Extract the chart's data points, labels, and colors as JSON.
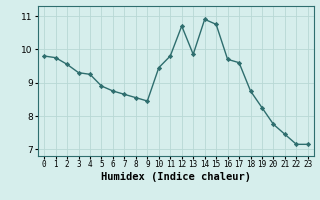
{
  "x": [
    0,
    1,
    2,
    3,
    4,
    5,
    6,
    7,
    8,
    9,
    10,
    11,
    12,
    13,
    14,
    15,
    16,
    17,
    18,
    19,
    20,
    21,
    22,
    23
  ],
  "y": [
    9.8,
    9.75,
    9.55,
    9.3,
    9.25,
    8.9,
    8.75,
    8.65,
    8.55,
    8.45,
    9.45,
    9.8,
    10.7,
    9.85,
    10.9,
    10.75,
    9.7,
    9.6,
    8.75,
    8.25,
    7.75,
    7.45,
    7.15,
    7.15
  ],
  "line_color": "#2e6e6e",
  "marker": "D",
  "marker_size": 2.2,
  "line_width": 1.0,
  "xlabel": "Humidex (Indice chaleur)",
  "xlabel_fontsize": 7.5,
  "xlabel_fontweight": "bold",
  "ylim": [
    6.8,
    11.3
  ],
  "xlim": [
    -0.5,
    23.5
  ],
  "yticks": [
    7,
    8,
    9,
    10,
    11
  ],
  "ytick_fontsize": 6.5,
  "xticks": [
    0,
    1,
    2,
    3,
    4,
    5,
    6,
    7,
    8,
    9,
    10,
    11,
    12,
    13,
    14,
    15,
    16,
    17,
    18,
    19,
    20,
    21,
    22,
    23
  ],
  "xtick_labels": [
    "0",
    "1",
    "2",
    "3",
    "4",
    "5",
    "6",
    "7",
    "8",
    "9",
    "10",
    "11",
    "12",
    "13",
    "14",
    "15",
    "16",
    "17",
    "18",
    "19",
    "20",
    "21",
    "22",
    "23"
  ],
  "xtick_fontsize": 5.5,
  "background_color": "#d6eeec",
  "grid_color": "#b8d8d5",
  "spine_color": "#2e6e6e"
}
